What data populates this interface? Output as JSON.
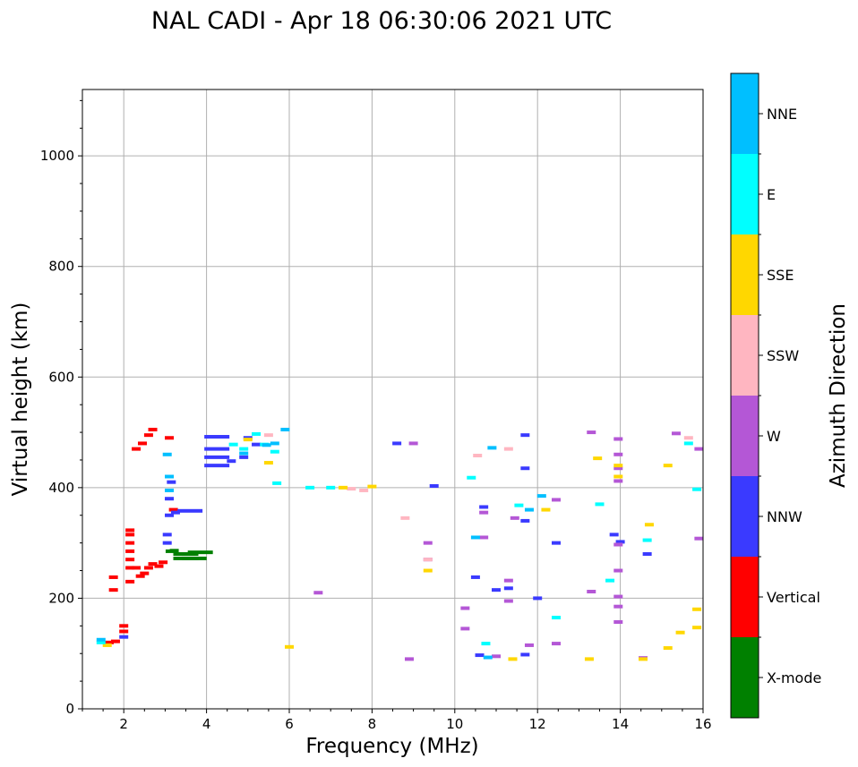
{
  "chart_data": {
    "type": "scatter",
    "title": "NAL CADI - Apr 18 06:30:06 2021 UTC",
    "xlabel": "Frequency (MHz)",
    "ylabel": "Virtual height (km)",
    "xlim": [
      1,
      16
    ],
    "ylim": [
      0,
      1120
    ],
    "xticks": [
      2,
      4,
      6,
      8,
      10,
      12,
      14,
      16
    ],
    "yticks": [
      0,
      200,
      400,
      600,
      800,
      1000
    ],
    "grid": true,
    "colorbar": {
      "label": "Azimuth Direction",
      "categories": [
        "X-mode",
        "Vertical",
        "NNW",
        "W",
        "SSW",
        "SSE",
        "E",
        "NNE"
      ],
      "colors": [
        "#008000",
        "#ff0000",
        "#3a3aff",
        "#b457d6",
        "#ffb6c1",
        "#ffd700",
        "#00ffff",
        "#00bfff"
      ]
    },
    "series": [
      {
        "name": "X-mode",
        "points": [
          [
            3.12,
            285
          ],
          [
            3.22,
            286
          ],
          [
            3.5,
            272
          ],
          [
            3.5,
            280
          ],
          [
            3.7,
            272
          ],
          [
            3.85,
            283
          ]
        ]
      },
      {
        "name": "Vertical",
        "points": [
          [
            1.65,
            120
          ],
          [
            1.8,
            122
          ],
          [
            1.75,
            215
          ],
          [
            1.75,
            238
          ],
          [
            2.0,
            140
          ],
          [
            2.0,
            150
          ],
          [
            2.15,
            230
          ],
          [
            2.15,
            255
          ],
          [
            2.15,
            270
          ],
          [
            2.15,
            285
          ],
          [
            2.15,
            300
          ],
          [
            2.15,
            315
          ],
          [
            2.15,
            323
          ],
          [
            2.3,
            255
          ],
          [
            2.4,
            240
          ],
          [
            2.5,
            245
          ],
          [
            2.6,
            255
          ],
          [
            2.7,
            262
          ],
          [
            2.85,
            258
          ],
          [
            2.95,
            265
          ],
          [
            2.3,
            470
          ],
          [
            2.45,
            480
          ],
          [
            2.6,
            495
          ],
          [
            2.7,
            505
          ],
          [
            3.1,
            490
          ],
          [
            3.2,
            360
          ]
        ]
      },
      {
        "name": "NNW",
        "points": [
          [
            2.0,
            130
          ],
          [
            3.05,
            300
          ],
          [
            3.05,
            315
          ],
          [
            3.1,
            350
          ],
          [
            3.1,
            380
          ],
          [
            3.15,
            410
          ],
          [
            3.25,
            355
          ],
          [
            3.6,
            358
          ],
          [
            4.25,
            440
          ],
          [
            4.25,
            455
          ],
          [
            4.25,
            470
          ],
          [
            4.25,
            492
          ],
          [
            4.6,
            448
          ],
          [
            4.9,
            455
          ],
          [
            5.0,
            490
          ],
          [
            5.2,
            478
          ],
          [
            9.5,
            403
          ],
          [
            10.5,
            238
          ],
          [
            10.7,
            365
          ],
          [
            11.0,
            215
          ],
          [
            11.3,
            218
          ],
          [
            11.7,
            98
          ],
          [
            11.7,
            435
          ],
          [
            12.0,
            200
          ],
          [
            12.45,
            300
          ],
          [
            13.85,
            315
          ],
          [
            14.0,
            302
          ],
          [
            14.65,
            280
          ],
          [
            10.6,
            97
          ],
          [
            11.7,
            340
          ],
          [
            11.7,
            495
          ],
          [
            8.6,
            480
          ]
        ]
      },
      {
        "name": "W",
        "points": [
          [
            6.7,
            210
          ],
          [
            8.9,
            90
          ],
          [
            9.0,
            480
          ],
          [
            9.35,
            300
          ],
          [
            9.35,
            270
          ],
          [
            10.25,
            182
          ],
          [
            10.25,
            145
          ],
          [
            10.7,
            310
          ],
          [
            10.7,
            355
          ],
          [
            11.0,
            95
          ],
          [
            11.3,
            195
          ],
          [
            11.3,
            232
          ],
          [
            11.45,
            345
          ],
          [
            11.8,
            115
          ],
          [
            12.45,
            378
          ],
          [
            12.45,
            118
          ],
          [
            13.3,
            500
          ],
          [
            13.3,
            212
          ],
          [
            13.95,
            488
          ],
          [
            13.95,
            460
          ],
          [
            13.95,
            435
          ],
          [
            13.95,
            412
          ],
          [
            13.95,
            297
          ],
          [
            13.95,
            250
          ],
          [
            13.95,
            203
          ],
          [
            13.95,
            185
          ],
          [
            13.95,
            157
          ],
          [
            14.55,
            92
          ],
          [
            15.35,
            498
          ],
          [
            15.9,
            470
          ],
          [
            15.9,
            308
          ]
        ]
      },
      {
        "name": "SSW",
        "points": [
          [
            5.5,
            495
          ],
          [
            7.5,
            398
          ],
          [
            7.8,
            395
          ],
          [
            8.8,
            345
          ],
          [
            9.35,
            270
          ],
          [
            11.3,
            470
          ],
          [
            15.65,
            490
          ],
          [
            10.55,
            458
          ]
        ]
      },
      {
        "name": "SSE",
        "points": [
          [
            1.6,
            115
          ],
          [
            5.0,
            487
          ],
          [
            5.5,
            445
          ],
          [
            6.0,
            112
          ],
          [
            7.3,
            400
          ],
          [
            8.0,
            402
          ],
          [
            9.35,
            250
          ],
          [
            11.4,
            90
          ],
          [
            12.2,
            360
          ],
          [
            13.25,
            90
          ],
          [
            13.45,
            453
          ],
          [
            13.95,
            440
          ],
          [
            13.95,
            420
          ],
          [
            14.55,
            90
          ],
          [
            14.7,
            333
          ],
          [
            15.15,
            440
          ],
          [
            15.15,
            110
          ],
          [
            15.45,
            138
          ],
          [
            15.85,
            147
          ],
          [
            15.85,
            180
          ]
        ]
      },
      {
        "name": "E",
        "points": [
          [
            1.45,
            120
          ],
          [
            4.65,
            478
          ],
          [
            4.9,
            470
          ],
          [
            5.2,
            497
          ],
          [
            5.4,
            478
          ],
          [
            5.65,
            465
          ],
          [
            5.7,
            408
          ],
          [
            6.5,
            400
          ],
          [
            7.0,
            400
          ],
          [
            10.4,
            418
          ],
          [
            10.75,
            118
          ],
          [
            11.55,
            368
          ],
          [
            12.45,
            165
          ],
          [
            13.5,
            370
          ],
          [
            13.75,
            232
          ],
          [
            14.65,
            305
          ],
          [
            15.65,
            480
          ],
          [
            15.85,
            397
          ]
        ]
      },
      {
        "name": "NNE",
        "points": [
          [
            1.45,
            125
          ],
          [
            3.05,
            460
          ],
          [
            3.1,
            420
          ],
          [
            3.1,
            395
          ],
          [
            4.9,
            462
          ],
          [
            5.45,
            477
          ],
          [
            5.65,
            480
          ],
          [
            5.9,
            505
          ],
          [
            10.5,
            310
          ],
          [
            10.8,
            93
          ],
          [
            10.9,
            472
          ],
          [
            11.8,
            360
          ],
          [
            12.1,
            385
          ]
        ]
      }
    ]
  }
}
